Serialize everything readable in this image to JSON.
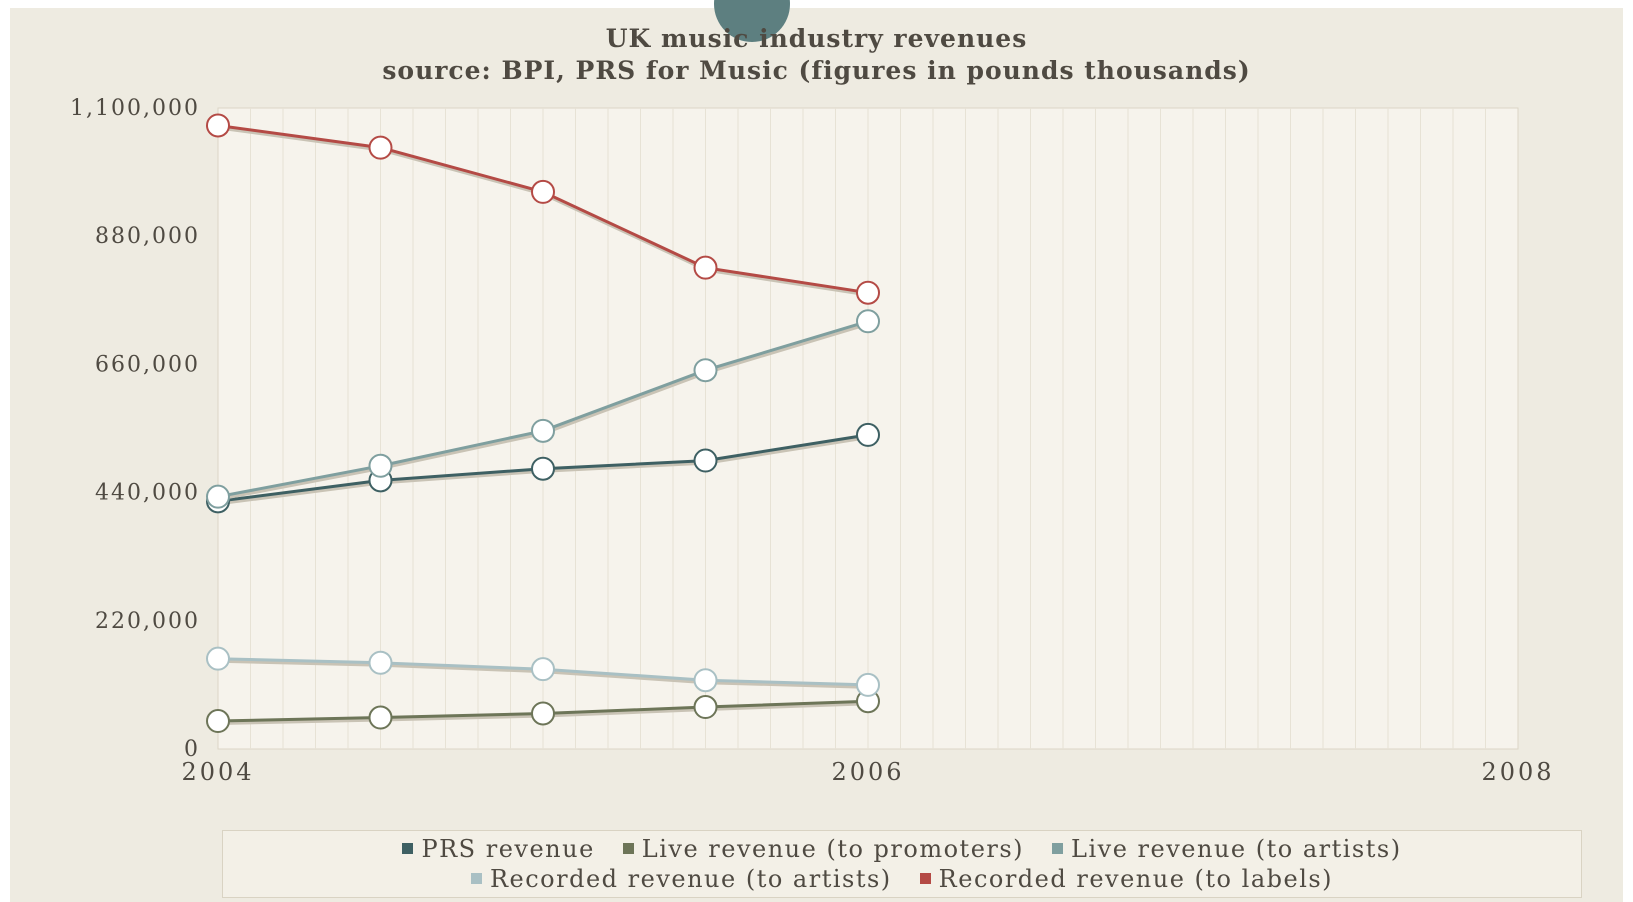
{
  "chart_data": {
    "type": "line",
    "title": "UK music industry revenues",
    "subtitle": "source: BPI, PRS for Music (figures in pounds thousands)",
    "xlabel": "",
    "ylabel": "",
    "x": [
      2004,
      2004.5,
      2005,
      2005.5,
      2006
    ],
    "xlim": [
      2004,
      2008
    ],
    "x_ticks": [
      "2004",
      "2006",
      "2008"
    ],
    "ylim": [
      0,
      1100000
    ],
    "y_ticks": [
      "0",
      "220,000",
      "440,000",
      "660,000",
      "880,000",
      "1,100,000"
    ],
    "grid": "vertical",
    "legend_position": "bottom",
    "series": [
      {
        "name": "PRS revenue",
        "color": "#3e6063",
        "values": [
          425000,
          461000,
          481000,
          495000,
          539000
        ]
      },
      {
        "name": "Live revenue (to promoters)",
        "color": "#6d7558",
        "values": [
          48000,
          54000,
          61000,
          72000,
          82000
        ]
      },
      {
        "name": "Live revenue (to artists)",
        "color": "#7f9f9f",
        "values": [
          433000,
          486000,
          546000,
          650000,
          734000
        ]
      },
      {
        "name": "Recorded revenue (to artists)",
        "color": "#a9c0c4",
        "values": [
          155000,
          148000,
          137000,
          118000,
          110000
        ]
      },
      {
        "name": "Recorded revenue (to labels)",
        "color": "#b44a45",
        "values": [
          1070000,
          1032000,
          956000,
          826000,
          783000
        ]
      }
    ]
  }
}
